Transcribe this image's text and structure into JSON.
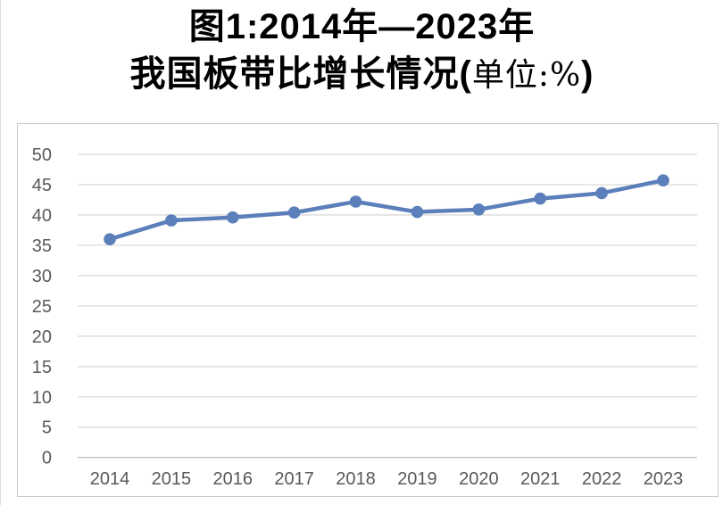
{
  "title": {
    "line1": "图1:2014年—2023年",
    "line2_main": "我国板带比增长情况(",
    "line2_unit": "单位:%",
    "line2_close": ")"
  },
  "chart_data": {
    "type": "line",
    "title": "图1:2014年—2023年我国板带比增长情况(单位:%)",
    "unit": "%",
    "categories": [
      "2014",
      "2015",
      "2016",
      "2017",
      "2018",
      "2019",
      "2020",
      "2021",
      "2022",
      "2023"
    ],
    "series": [
      {
        "name": "板带比",
        "values": [
          36.0,
          39.1,
          39.6,
          40.4,
          42.2,
          40.5,
          40.9,
          42.7,
          43.6,
          45.7
        ]
      }
    ],
    "ylim": [
      0,
      50
    ],
    "yticks": [
      0,
      5,
      10,
      15,
      20,
      25,
      30,
      35,
      40,
      45,
      50
    ],
    "grid": true,
    "legend": "none",
    "colors": {
      "line": "#5b7fba",
      "grid": "#d9d9d9",
      "axis_line": "#c0c0c0",
      "axis_labels": "#595959",
      "frame": "#c9c9c9"
    }
  }
}
